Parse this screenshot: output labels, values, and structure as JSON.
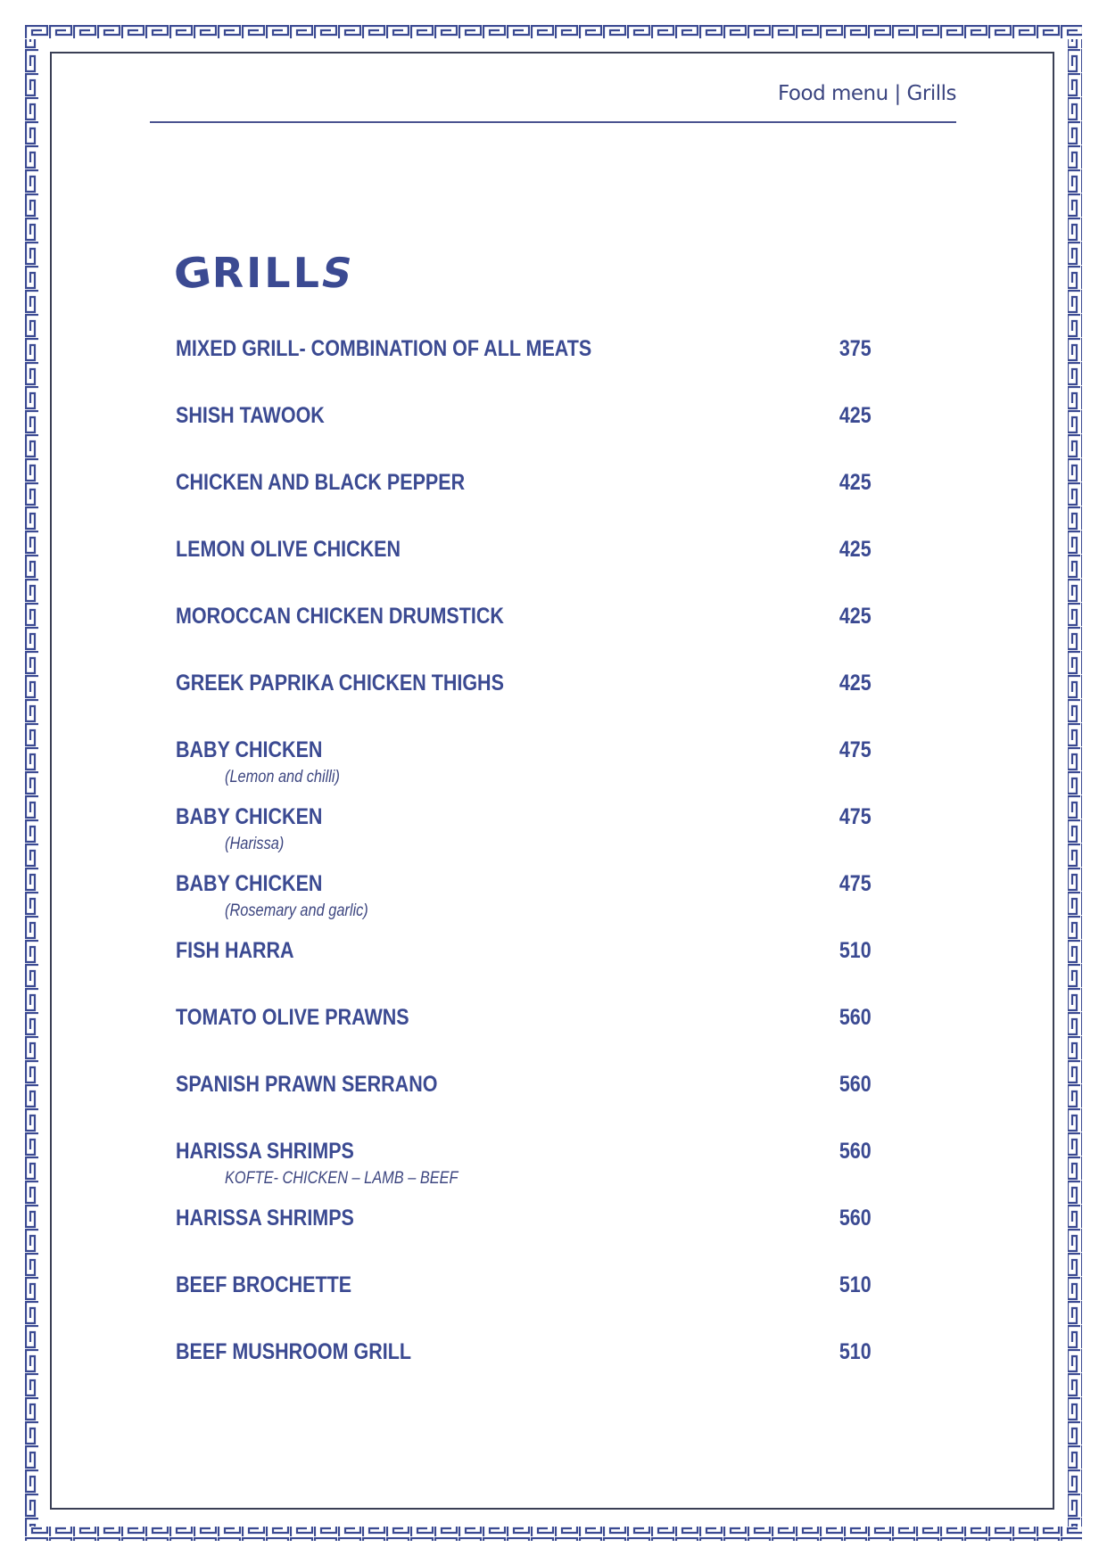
{
  "header": {
    "breadcrumb": "Food menu | Grills"
  },
  "section_title": "GRILLS",
  "colors": {
    "accent": "#3b4a92",
    "frame": "#3a3f55"
  },
  "items": [
    {
      "name": "MIXED GRILL- COMBINATION OF ALL MEATS",
      "price": "375"
    },
    {
      "name": "SHISH TAWOOK",
      "price": "425"
    },
    {
      "name": "CHICKEN AND BLACK PEPPER",
      "price": "425"
    },
    {
      "name": "LEMON OLIVE CHICKEN",
      "price": "425"
    },
    {
      "name": "MOROCCAN CHICKEN DRUMSTICK",
      "price": "425"
    },
    {
      "name": "GREEK PAPRIKA CHICKEN THIGHS",
      "price": "425"
    },
    {
      "name": "BABY CHICKEN",
      "price": "475",
      "sub": "(Lemon and chilli)"
    },
    {
      "name": "BABY CHICKEN",
      "price": "475",
      "sub": "(Harissa)"
    },
    {
      "name": "BABY CHICKEN",
      "price": "475",
      "sub": "(Rosemary and garlic)"
    },
    {
      "name": "FISH HARRA",
      "price": "510"
    },
    {
      "name": "TOMATO OLIVE PRAWNS",
      "price": "560"
    },
    {
      "name": "SPANISH PRAWN SERRANO",
      "price": "560"
    },
    {
      "name": "HARISSA SHRIMPS",
      "price": "560",
      "sub": "KOFTE- CHICKEN – LAMB – BEEF"
    },
    {
      "name": "HARISSA SHRIMPS",
      "price": "560"
    },
    {
      "name": "BEEF BROCHETTE",
      "price": "510"
    },
    {
      "name": "BEEF MUSHROOM GRILL",
      "price": "510"
    }
  ]
}
